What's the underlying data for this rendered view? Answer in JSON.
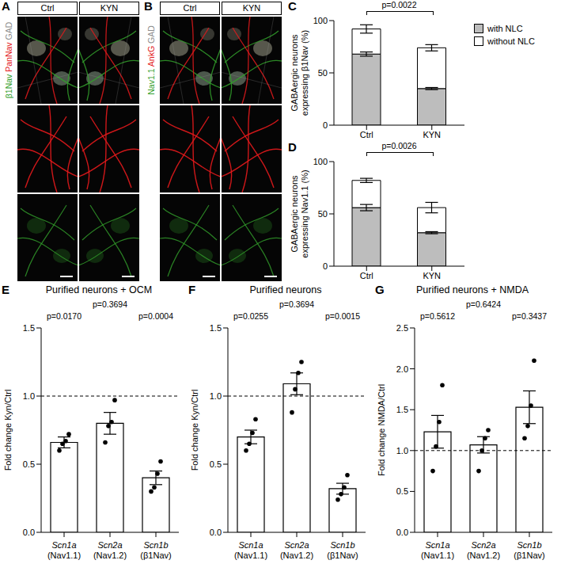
{
  "image_panels": [
    {
      "panel": "A",
      "columns": [
        "Ctrl",
        "KYN"
      ],
      "channels": [
        {
          "name": "β1Nav",
          "color": "#33a02c"
        },
        {
          "name": "PanNav",
          "color": "#e31a1c"
        },
        {
          "name": "GAD",
          "color": "#8c8c8c"
        }
      ]
    },
    {
      "panel": "B",
      "columns": [
        "Ctrl",
        "KYN"
      ],
      "channels": [
        {
          "name": "Nav1.1",
          "color": "#33a02c"
        },
        {
          "name": "AnkG",
          "color": "#e31a1c"
        },
        {
          "name": "GAD",
          "color": "#8c8c8c"
        }
      ]
    }
  ],
  "chart_data": [
    {
      "panel": "C",
      "type": "bar",
      "stacked": true,
      "ylabel": "GABAergic neurons expressing β1Nav (%)",
      "categories": [
        "Ctrl",
        "KYN"
      ],
      "series": [
        {
          "name": "with NLC",
          "color": "#bdbdbd",
          "values": [
            68,
            35
          ],
          "errors": [
            2,
            1
          ]
        },
        {
          "name": "without NLC",
          "color": "#ffffff",
          "values": [
            24,
            39
          ],
          "errors": [
            4,
            3
          ]
        }
      ],
      "ylim": [
        0,
        100
      ],
      "yticks": [
        0,
        50,
        100
      ],
      "annotation": "p=0.0022",
      "legend": "top right"
    },
    {
      "panel": "D",
      "type": "bar",
      "stacked": true,
      "ylabel": "GABAergic neurons expressing Nav1.1 (%)",
      "categories": [
        "Ctrl",
        "KYN"
      ],
      "series": [
        {
          "name": "with NLC",
          "color": "#bdbdbd",
          "values": [
            56,
            32
          ],
          "errors": [
            3,
            1
          ]
        },
        {
          "name": "without NLC",
          "color": "#ffffff",
          "values": [
            26,
            24
          ],
          "errors": [
            2,
            5
          ]
        }
      ],
      "ylim": [
        0,
        100
      ],
      "yticks": [
        0,
        50,
        100
      ],
      "annotation": "p=0.0026"
    },
    {
      "panel": "E",
      "type": "bar",
      "title": "Purified neurons + OCM",
      "ylabel": "Fold change Kyn/Ctrl",
      "categories": [
        "Scn1a (Nav1.1)",
        "Scn2a (Nav1.2)",
        "Scn1b (β1Nav)"
      ],
      "values": [
        0.66,
        0.8,
        0.4
      ],
      "errors": [
        0.04,
        0.08,
        0.05
      ],
      "points": [
        [
          0.6,
          0.65,
          0.67,
          0.72
        ],
        [
          0.66,
          0.78,
          0.81,
          0.97
        ],
        [
          0.3,
          0.33,
          0.43,
          0.52
        ]
      ],
      "p_values": [
        "p=0.0170",
        "p=0.3694",
        "p=0.0004"
      ],
      "reference_line": 1,
      "color": "#ffffff",
      "ylim": [
        0,
        1.5
      ],
      "yticks": [
        {
          "value": 0,
          "label": "0.0"
        },
        0.5,
        {
          "value": 1,
          "label": "1.0"
        },
        1.5
      ]
    },
    {
      "panel": "F",
      "type": "bar",
      "title": "Purified neurons",
      "ylabel": "Fold change Kyn/Ctrl",
      "categories": [
        "Scn1a (Nav1.1)",
        "Scn2a (Nav1.2)",
        "Scn1b (β1Nav)"
      ],
      "values": [
        0.7,
        1.09,
        0.32
      ],
      "errors": [
        0.05,
        0.08,
        0.04
      ],
      "points": [
        [
          0.6,
          0.65,
          0.73,
          0.83
        ],
        [
          0.88,
          1.05,
          1.17,
          1.25
        ],
        [
          0.24,
          0.28,
          0.33,
          0.42
        ]
      ],
      "p_values": [
        "p=0.0255",
        "p=0.3694",
        "p=0.0015"
      ],
      "reference_line": 1,
      "color": "#ffffff",
      "ylim": [
        0,
        1.5
      ],
      "yticks": [
        {
          "value": 0,
          "label": "0.0"
        },
        0.5,
        {
          "value": 1,
          "label": "1.0"
        },
        1.5
      ]
    },
    {
      "panel": "G",
      "type": "bar",
      "title": "Purified neurons + NMDA",
      "ylabel": "Fold change NMDA/Ctrl",
      "categories": [
        "Scn1a (Nav1.1)",
        "Scn2a (Nav1.2)",
        "Scn1b (β1Nav)"
      ],
      "values": [
        1.23,
        1.07,
        1.53
      ],
      "errors": [
        0.2,
        0.1,
        0.2
      ],
      "points": [
        [
          0.75,
          1.05,
          1.35,
          1.8
        ],
        [
          0.75,
          1.0,
          1.15,
          1.25
        ],
        [
          1.15,
          1.3,
          1.55,
          2.1
        ]
      ],
      "p_values": [
        "p=0.5612",
        "p=0.6424",
        "p=0.3437"
      ],
      "reference_line": 1,
      "color": "#ffffff",
      "ylim": [
        0,
        2.5
      ],
      "yticks": [
        {
          "value": 0,
          "label": "0.0"
        },
        0.5,
        {
          "value": 1,
          "label": "1.0"
        },
        1.5,
        {
          "value": 2,
          "label": "2.0"
        },
        2.5
      ]
    }
  ]
}
